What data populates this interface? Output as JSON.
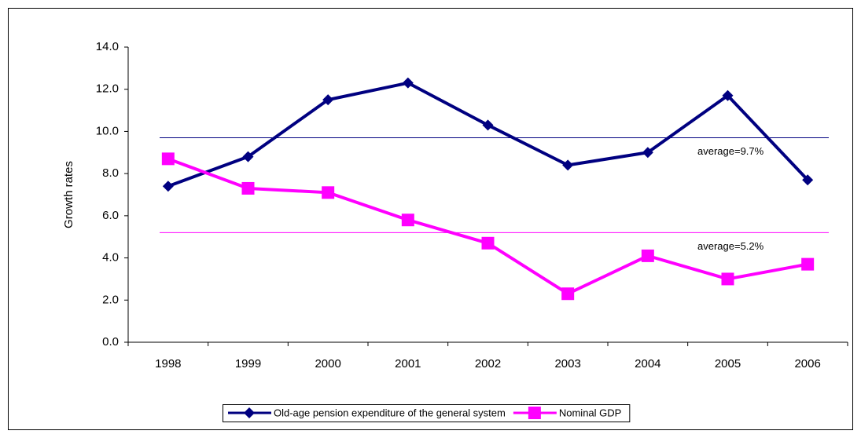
{
  "chart_data": {
    "type": "line",
    "y_label": "Growth rates",
    "categories": [
      "1998",
      "1999",
      "2000",
      "2001",
      "2002",
      "2003",
      "2004",
      "2005",
      "2006"
    ],
    "series": [
      {
        "name": "Old-age pension expenditure of the general system",
        "color": "#000080",
        "marker": "diamond",
        "values": [
          7.4,
          8.8,
          11.5,
          12.3,
          10.3,
          8.4,
          9.0,
          11.7,
          7.7
        ]
      },
      {
        "name": "Nominal GDP",
        "color": "#ff00ff",
        "marker": "square",
        "values": [
          8.7,
          7.3,
          7.1,
          5.8,
          4.7,
          2.3,
          4.1,
          3.0,
          3.7
        ]
      }
    ],
    "reference_lines": [
      {
        "value": 9.7,
        "label": "average=9.7%",
        "color": "#000080"
      },
      {
        "value": 5.2,
        "label": "average=5.2%",
        "color": "#ff00ff"
      }
    ],
    "ylim": [
      0,
      14
    ],
    "yticks": [
      {
        "value": 0,
        "label": "0.0"
      },
      {
        "value": 2,
        "label": "2.0"
      },
      {
        "value": 4,
        "label": "4.0"
      },
      {
        "value": 6,
        "label": "6.0"
      },
      {
        "value": 8,
        "label": "8.0"
      },
      {
        "value": 10,
        "label": "10.0"
      },
      {
        "value": 12,
        "label": "12.0"
      },
      {
        "value": 14,
        "label": "14.0"
      }
    ],
    "legend_position": "bottom"
  }
}
